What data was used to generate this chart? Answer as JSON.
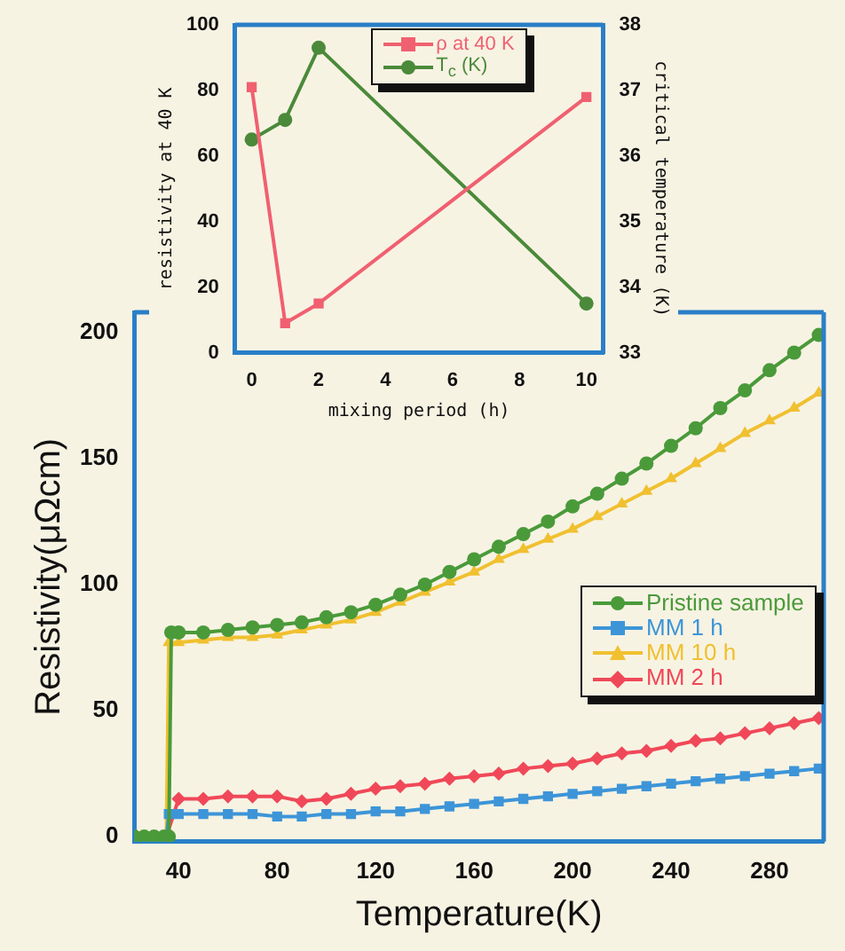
{
  "chart_data": [
    {
      "type": "line",
      "xlabel": "Temperature(K)",
      "ylabel": "Resistivity(μΩcm)",
      "xlim": [
        22,
        302
      ],
      "ylim": [
        -2,
        208
      ],
      "xticks": [
        40,
        80,
        120,
        160,
        200,
        240,
        280
      ],
      "yticks": [
        0,
        50,
        100,
        150,
        200
      ],
      "grid": false,
      "legend": "right",
      "series": [
        {
          "name": "Pristine sample",
          "color": "#4a9a3a",
          "marker": "circle",
          "x": [
            22,
            26,
            30,
            34,
            36,
            37,
            40,
            50,
            60,
            70,
            80,
            90,
            100,
            110,
            120,
            130,
            140,
            150,
            160,
            170,
            180,
            190,
            200,
            210,
            220,
            230,
            240,
            250,
            260,
            270,
            280,
            290,
            300
          ],
          "values": [
            0,
            0,
            0,
            0,
            0,
            81,
            81,
            81,
            82,
            83,
            84,
            85,
            87,
            89,
            92,
            96,
            100,
            105,
            110,
            115,
            120,
            125,
            131,
            136,
            142,
            148,
            155,
            162,
            170,
            177,
            185,
            192,
            199
          ]
        },
        {
          "name": "MM 1 h",
          "color": "#3d95d8",
          "marker": "square",
          "x": [
            22,
            26,
            30,
            34,
            35,
            36,
            40,
            50,
            60,
            70,
            80,
            90,
            100,
            110,
            120,
            130,
            140,
            150,
            160,
            170,
            180,
            190,
            200,
            210,
            220,
            230,
            240,
            250,
            260,
            270,
            280,
            290,
            300
          ],
          "values": [
            0,
            0,
            0,
            0,
            0,
            9,
            9,
            9,
            9,
            9,
            8,
            8,
            9,
            9,
            10,
            10,
            11,
            12,
            13,
            14,
            15,
            16,
            17,
            18,
            19,
            20,
            21,
            22,
            23,
            24,
            25,
            26,
            27
          ]
        },
        {
          "name": "MM 10 h",
          "color": "#f0c030",
          "marker": "triangle",
          "x": [
            34,
            35,
            36,
            40,
            50,
            60,
            70,
            80,
            90,
            100,
            110,
            120,
            130,
            140,
            150,
            160,
            170,
            180,
            190,
            200,
            210,
            220,
            230,
            240,
            250,
            260,
            270,
            280,
            290,
            300
          ],
          "values": [
            0,
            0,
            77,
            77,
            78,
            79,
            79,
            80,
            82,
            84,
            86,
            89,
            93,
            97,
            101,
            105,
            110,
            114,
            118,
            122,
            127,
            132,
            137,
            142,
            148,
            154,
            160,
            165,
            170,
            176
          ]
        },
        {
          "name": "MM 2 h",
          "color": "#f04858",
          "marker": "diamond",
          "x": [
            35,
            40,
            50,
            60,
            70,
            80,
            90,
            100,
            110,
            120,
            130,
            140,
            150,
            160,
            170,
            180,
            190,
            200,
            210,
            220,
            230,
            240,
            250,
            260,
            270,
            280,
            290,
            300
          ],
          "values": [
            0,
            15,
            15,
            16,
            16,
            16,
            14,
            15,
            17,
            19,
            20,
            21,
            23,
            24,
            25,
            27,
            28,
            29,
            31,
            33,
            34,
            36,
            38,
            39,
            41,
            43,
            45,
            47
          ]
        }
      ]
    },
    {
      "type": "line",
      "xlabel": "mixing period (h)",
      "ylabel": "resistivity at 40 K",
      "y2label": "critical temperature (K)",
      "xlim": [
        -0.5,
        10.5
      ],
      "ylim": [
        0,
        100
      ],
      "y2lim": [
        33,
        38
      ],
      "xticks": [
        0,
        2,
        4,
        6,
        8,
        10
      ],
      "yticks": [
        0,
        20,
        40,
        60,
        80,
        100
      ],
      "y2ticks": [
        33,
        34,
        35,
        36,
        37,
        38
      ],
      "grid": false,
      "legend": "top",
      "series": [
        {
          "name": "ρ at 40 K",
          "color": "#f06070",
          "marker": "square",
          "x": [
            0,
            1,
            2,
            10
          ],
          "values": [
            81,
            9,
            15,
            78
          ]
        },
        {
          "name": "T$_{c}$ (K)",
          "color": "#4a8a3a",
          "marker": "circle",
          "axis": "y2",
          "x": [
            0,
            1,
            2,
            10
          ],
          "values": [
            36.25,
            36.55,
            37.65,
            33.75
          ]
        }
      ]
    }
  ]
}
